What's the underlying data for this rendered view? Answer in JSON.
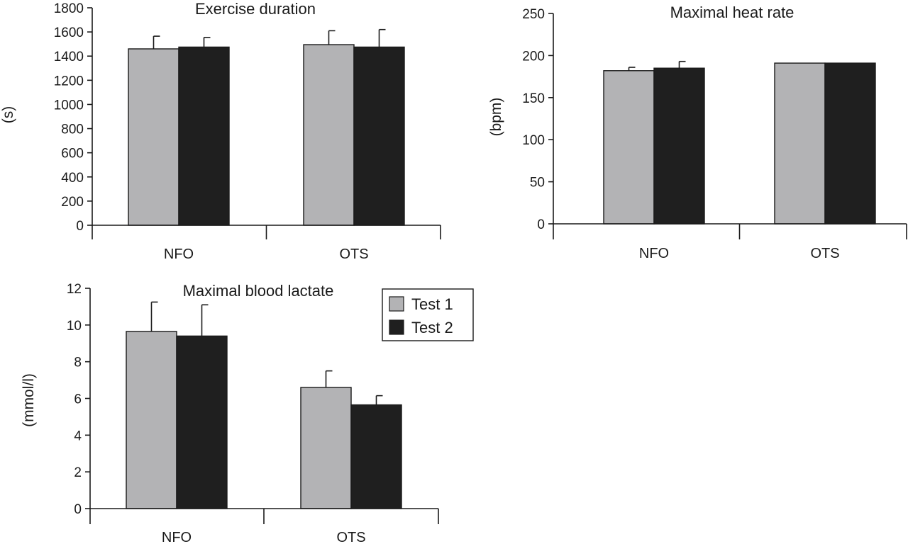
{
  "colors": {
    "test1": "#b3b3b5",
    "test2": "#1f1f1f",
    "axis": "#1a1a1a"
  },
  "legend": {
    "items": [
      {
        "label": "Test 1",
        "color": "#b3b3b5"
      },
      {
        "label": "Test 2",
        "color": "#1f1f1f"
      }
    ]
  },
  "chart_data": [
    {
      "type": "bar",
      "title": "Exercise duration",
      "ylabel": "(s)",
      "xlabel": "",
      "categories": [
        "NFO",
        "OTS"
      ],
      "ylim": [
        0,
        1800
      ],
      "yticks": [
        0,
        200,
        400,
        600,
        800,
        1000,
        1200,
        1400,
        1600,
        1800
      ],
      "series": [
        {
          "name": "Test 1",
          "values": [
            1460,
            1495
          ],
          "errors": [
            105,
            115
          ]
        },
        {
          "name": "Test 2",
          "values": [
            1475,
            1475
          ],
          "errors": [
            80,
            145
          ]
        }
      ]
    },
    {
      "type": "bar",
      "title": "Maximal heat rate",
      "ylabel": "(bpm)",
      "xlabel": "",
      "categories": [
        "NFO",
        "OTS"
      ],
      "ylim": [
        0,
        250
      ],
      "yticks": [
        0,
        50,
        100,
        150,
        200,
        250
      ],
      "series": [
        {
          "name": "Test 1",
          "values": [
            182,
            191
          ],
          "errors": [
            4,
            0
          ]
        },
        {
          "name": "Test 2",
          "values": [
            185,
            191
          ],
          "errors": [
            8,
            0
          ]
        }
      ]
    },
    {
      "type": "bar",
      "title": "Maximal blood lactate",
      "ylabel": "(mmol/l)",
      "xlabel": "",
      "categories": [
        "NFO",
        "OTS"
      ],
      "ylim": [
        0,
        12
      ],
      "yticks": [
        0,
        2,
        4,
        6,
        8,
        10,
        12
      ],
      "series": [
        {
          "name": "Test 1",
          "values": [
            9.65,
            6.6
          ],
          "errors": [
            1.6,
            0.9
          ]
        },
        {
          "name": "Test 2",
          "values": [
            9.4,
            5.65
          ],
          "errors": [
            1.7,
            0.5
          ]
        }
      ]
    }
  ]
}
